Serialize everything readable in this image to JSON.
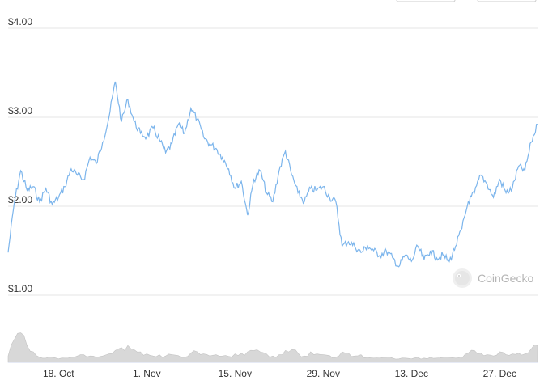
{
  "toolbar": {
    "buttons": [
      "",
      ""
    ]
  },
  "watermark": {
    "text": "CoinGecko",
    "logo_icon": "gecko-logo-icon"
  },
  "colors": {
    "line": "#7cb5ec",
    "volume": "#d8d8d8",
    "grid": "#e6e6e6",
    "text": "#333333"
  },
  "chart_data": {
    "type": "line",
    "title": "",
    "xlabel": "",
    "ylabel": "",
    "grid": true,
    "yticks": [
      "$1.00",
      "$2.00",
      "$3.00",
      "$4.00"
    ],
    "ylim": [
      1.0,
      4.0
    ],
    "xticks": [
      "18. Oct",
      "1. Nov",
      "15. Nov",
      "29. Nov",
      "13. Dec",
      "27. Dec"
    ],
    "xlim": [
      "2021-10-10",
      "2022-01-02"
    ],
    "series": [
      {
        "x": [
          "2021-10-10",
          "2021-10-11",
          "2021-10-12",
          "2021-10-13",
          "2021-10-14",
          "2021-10-15",
          "2021-10-16",
          "2021-10-17",
          "2021-10-18",
          "2021-10-19",
          "2021-10-20",
          "2021-10-21",
          "2021-10-22",
          "2021-10-23",
          "2021-10-24",
          "2021-10-25",
          "2021-10-26",
          "2021-10-27",
          "2021-10-28",
          "2021-10-29",
          "2021-10-30",
          "2021-10-31",
          "2021-11-01",
          "2021-11-02",
          "2021-11-03",
          "2021-11-04",
          "2021-11-05",
          "2021-11-06",
          "2021-11-07",
          "2021-11-08",
          "2021-11-09",
          "2021-11-10",
          "2021-11-11",
          "2021-11-12",
          "2021-11-13",
          "2021-11-14",
          "2021-11-15",
          "2021-11-16",
          "2021-11-17",
          "2021-11-18",
          "2021-11-19",
          "2021-11-20",
          "2021-11-21",
          "2021-11-22",
          "2021-11-23",
          "2021-11-24",
          "2021-11-25",
          "2021-11-26",
          "2021-11-27",
          "2021-11-28",
          "2021-11-29",
          "2021-11-30",
          "2021-12-01",
          "2021-12-02",
          "2021-12-03",
          "2021-12-04",
          "2021-12-05",
          "2021-12-06",
          "2021-12-07",
          "2021-12-08",
          "2021-12-09",
          "2021-12-10",
          "2021-12-11",
          "2021-12-12",
          "2021-12-13",
          "2021-12-14",
          "2021-12-15",
          "2021-12-16",
          "2021-12-17",
          "2021-12-18",
          "2021-12-19",
          "2021-12-20",
          "2021-12-21",
          "2021-12-22",
          "2021-12-23",
          "2021-12-24",
          "2021-12-25",
          "2021-12-26",
          "2021-12-27",
          "2021-12-28",
          "2021-12-29",
          "2021-12-30",
          "2021-12-31",
          "2022-01-01",
          "2022-01-02"
        ],
        "values": [
          1.48,
          2.05,
          2.4,
          2.18,
          2.22,
          2.05,
          2.2,
          2.02,
          2.1,
          2.22,
          2.42,
          2.35,
          2.3,
          2.55,
          2.48,
          2.72,
          3.0,
          3.4,
          2.95,
          3.2,
          2.95,
          2.82,
          2.78,
          2.88,
          2.75,
          2.6,
          2.7,
          2.92,
          2.82,
          3.1,
          2.98,
          2.78,
          2.7,
          2.65,
          2.55,
          2.42,
          2.2,
          2.28,
          1.9,
          2.3,
          2.4,
          2.15,
          2.05,
          2.4,
          2.62,
          2.35,
          2.15,
          2.05,
          2.2,
          2.18,
          2.22,
          2.1,
          2.05,
          1.55,
          1.6,
          1.55,
          1.48,
          1.55,
          1.5,
          1.45,
          1.5,
          1.42,
          1.32,
          1.45,
          1.38,
          1.55,
          1.4,
          1.5,
          1.42,
          1.45,
          1.38,
          1.55,
          1.75,
          2.05,
          2.15,
          2.35,
          2.25,
          2.1,
          2.3,
          2.15,
          2.2,
          2.45,
          2.4,
          2.72,
          2.92
        ],
        "volume": [
          0.15,
          0.55,
          0.7,
          0.4,
          0.25,
          0.12,
          0.1,
          0.12,
          0.08,
          0.1,
          0.12,
          0.15,
          0.18,
          0.15,
          0.12,
          0.15,
          0.2,
          0.28,
          0.35,
          0.4,
          0.3,
          0.25,
          0.2,
          0.15,
          0.18,
          0.15,
          0.18,
          0.16,
          0.12,
          0.22,
          0.25,
          0.2,
          0.15,
          0.18,
          0.15,
          0.14,
          0.2,
          0.22,
          0.25,
          0.28,
          0.25,
          0.2,
          0.15,
          0.18,
          0.28,
          0.3,
          0.22,
          0.15,
          0.25,
          0.2,
          0.18,
          0.16,
          0.12,
          0.25,
          0.22,
          0.15,
          0.18,
          0.12,
          0.1,
          0.1,
          0.12,
          0.1,
          0.08,
          0.1,
          0.08,
          0.12,
          0.1,
          0.12,
          0.1,
          0.12,
          0.12,
          0.1,
          0.1,
          0.22,
          0.28,
          0.22,
          0.18,
          0.15,
          0.25,
          0.18,
          0.2,
          0.22,
          0.2,
          0.32,
          0.4
        ]
      }
    ]
  }
}
